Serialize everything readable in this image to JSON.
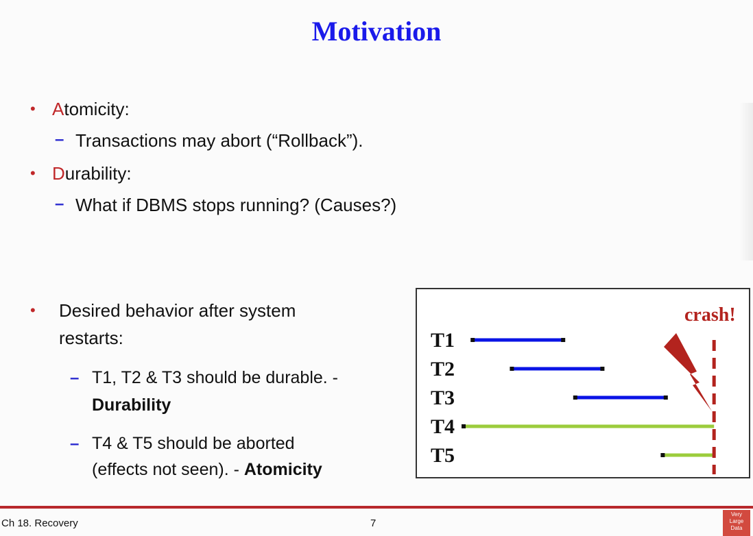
{
  "slide": {
    "title": "Motivation",
    "bullets": [
      {
        "initial": "A",
        "rest": "tomicity:",
        "sub": "Transactions may abort (“Rollback”)."
      },
      {
        "initial": "D",
        "rest": "urability:",
        "sub": "What if DBMS stops running?  (Causes?)"
      }
    ],
    "desired": {
      "line1": "Desired behavior after system",
      "line2": "restarts:",
      "sub1_line1": "T1, T2 & T3 should be durable. -",
      "sub1_bold": "Durability",
      "sub2_line1": "T4 & T5 should be aborted",
      "sub2_line2": "(effects not seen). - ",
      "sub2_bold": "Atomicity"
    }
  },
  "diagram": {
    "crash_label": "crash!",
    "transactions": [
      {
        "label": "T1",
        "start": 0.03,
        "end": 0.33,
        "color": "#0a14e6"
      },
      {
        "label": "T2",
        "start": 0.16,
        "end": 0.46,
        "color": "#0a14e6"
      },
      {
        "label": "T3",
        "start": 0.37,
        "end": 0.67,
        "color": "#0a14e6"
      },
      {
        "label": "T4",
        "start": 0.0,
        "end": 0.83,
        "color": "#9ccc3c"
      },
      {
        "label": "T5",
        "start": 0.66,
        "end": 0.83,
        "color": "#9ccc3c"
      }
    ],
    "crash_color": "#b3231e"
  },
  "footer": {
    "left": "Ch 18. Recovery",
    "page": "7",
    "logo_lines": [
      "Very",
      "Large",
      "Data"
    ]
  }
}
